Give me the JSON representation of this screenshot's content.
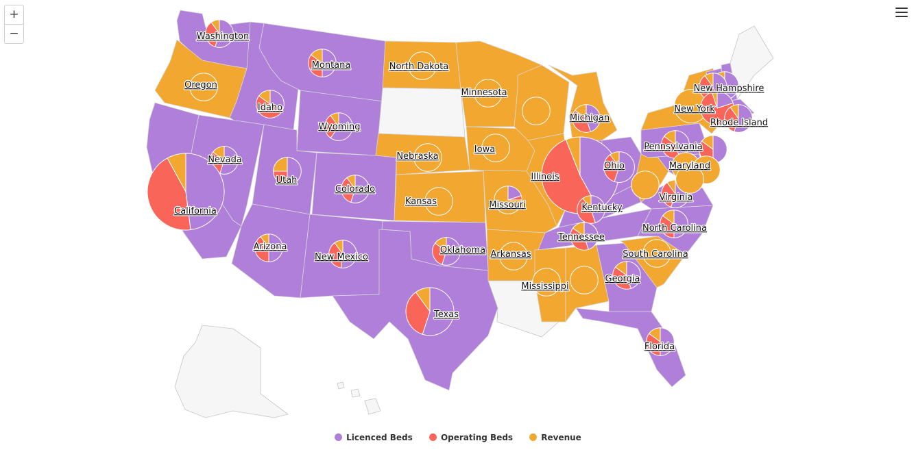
{
  "zoom": {
    "in_label": "+",
    "out_label": "−"
  },
  "menu": {
    "icon": "hamburger-menu-icon"
  },
  "colors": {
    "licenced_beds": "#b07fd9",
    "operating_beds": "#f96659",
    "revenue": "#f2a730",
    "no_data": "#f6f6f6",
    "border": "#d9d9d9"
  },
  "legend": [
    {
      "key": "licenced_beds",
      "label": "Licenced Beds",
      "color": "#b07fd9"
    },
    {
      "key": "operating_beds",
      "label": "Operating Beds",
      "color": "#f96659"
    },
    {
      "key": "revenue",
      "label": "Revenue",
      "color": "#f2a730"
    }
  ],
  "states": [
    {
      "name": "Washington",
      "fill": "licenced_beds"
    },
    {
      "name": "Oregon",
      "fill": "revenue"
    },
    {
      "name": "California",
      "fill": "licenced_beds"
    },
    {
      "name": "Idaho",
      "fill": "licenced_beds"
    },
    {
      "name": "Nevada",
      "fill": "licenced_beds"
    },
    {
      "name": "Montana",
      "fill": "licenced_beds"
    },
    {
      "name": "Wyoming",
      "fill": "licenced_beds"
    },
    {
      "name": "Utah",
      "fill": "licenced_beds"
    },
    {
      "name": "Arizona",
      "fill": "licenced_beds"
    },
    {
      "name": "Colorado",
      "fill": "licenced_beds"
    },
    {
      "name": "New Mexico",
      "fill": "licenced_beds"
    },
    {
      "name": "North Dakota",
      "fill": "revenue"
    },
    {
      "name": "South Dakota",
      "fill": "no_data"
    },
    {
      "name": "Nebraska",
      "fill": "revenue"
    },
    {
      "name": "Kansas",
      "fill": "revenue"
    },
    {
      "name": "Oklahoma",
      "fill": "licenced_beds"
    },
    {
      "name": "Texas",
      "fill": "licenced_beds"
    },
    {
      "name": "Minnesota",
      "fill": "revenue"
    },
    {
      "name": "Iowa",
      "fill": "revenue"
    },
    {
      "name": "Missouri",
      "fill": "revenue"
    },
    {
      "name": "Arkansas",
      "fill": "revenue"
    },
    {
      "name": "Louisiana",
      "fill": "no_data"
    },
    {
      "name": "Wisconsin",
      "fill": "revenue"
    },
    {
      "name": "Illinois",
      "fill": "revenue"
    },
    {
      "name": "Michigan",
      "fill": "revenue"
    },
    {
      "name": "Indiana",
      "fill": "licenced_beds"
    },
    {
      "name": "Ohio",
      "fill": "licenced_beds"
    },
    {
      "name": "Kentucky",
      "fill": "licenced_beds"
    },
    {
      "name": "Tennessee",
      "fill": "licenced_beds"
    },
    {
      "name": "Mississippi",
      "fill": "revenue"
    },
    {
      "name": "Alabama",
      "fill": "revenue"
    },
    {
      "name": "Georgia",
      "fill": "licenced_beds"
    },
    {
      "name": "Florida",
      "fill": "licenced_beds"
    },
    {
      "name": "South Carolina",
      "fill": "revenue"
    },
    {
      "name": "North Carolina",
      "fill": "licenced_beds"
    },
    {
      "name": "Virginia",
      "fill": "licenced_beds"
    },
    {
      "name": "West Virginia",
      "fill": "revenue"
    },
    {
      "name": "Pennsylvania",
      "fill": "licenced_beds"
    },
    {
      "name": "New York",
      "fill": "revenue"
    },
    {
      "name": "Maryland",
      "fill": "licenced_beds"
    },
    {
      "name": "Vermont",
      "fill": "licenced_beds"
    },
    {
      "name": "New Hampshire",
      "fill": "licenced_beds"
    },
    {
      "name": "Maine",
      "fill": "no_data"
    },
    {
      "name": "Massachusetts",
      "fill": "licenced_beds"
    },
    {
      "name": "Rhode Island",
      "fill": "licenced_beds"
    },
    {
      "name": "Alaska",
      "fill": "no_data"
    },
    {
      "name": "Hawaii",
      "fill": "no_data"
    }
  ],
  "labels": [
    {
      "state": "Washington",
      "text": "Washington"
    },
    {
      "state": "Oregon",
      "text": "Oregon"
    },
    {
      "state": "California",
      "text": "California"
    },
    {
      "state": "Idaho",
      "text": "Idaho"
    },
    {
      "state": "Nevada",
      "text": "Nevada"
    },
    {
      "state": "Montana",
      "text": "Montana"
    },
    {
      "state": "Wyoming",
      "text": "Wyoming"
    },
    {
      "state": "Utah",
      "text": "Utah"
    },
    {
      "state": "Arizona",
      "text": "Arizona"
    },
    {
      "state": "Colorado",
      "text": "Colorado"
    },
    {
      "state": "New Mexico",
      "text": "New Mexico"
    },
    {
      "state": "North Dakota",
      "text": "North Dakota"
    },
    {
      "state": "Nebraska",
      "text": "Nebraska"
    },
    {
      "state": "Kansas",
      "text": "Kansas"
    },
    {
      "state": "Oklahoma",
      "text": "Oklahoma"
    },
    {
      "state": "Texas",
      "text": "Texas"
    },
    {
      "state": "Minnesota",
      "text": "Minnesota"
    },
    {
      "state": "Iowa",
      "text": "Iowa"
    },
    {
      "state": "Missouri",
      "text": "Missouri"
    },
    {
      "state": "Arkansas",
      "text": "Arkansas"
    },
    {
      "state": "Illinois",
      "text": "Illinois"
    },
    {
      "state": "Michigan",
      "text": "Michigan"
    },
    {
      "state": "Ohio",
      "text": "Ohio"
    },
    {
      "state": "Kentucky",
      "text": "Kentucky"
    },
    {
      "state": "Tennessee",
      "text": "Tennessee"
    },
    {
      "state": "Mississippi",
      "text": "Mississippi"
    },
    {
      "state": "Georgia",
      "text": "Georgia"
    },
    {
      "state": "Florida",
      "text": "Florida"
    },
    {
      "state": "South Carolina",
      "text": "South Carolina"
    },
    {
      "state": "North Carolina",
      "text": "North Carolina"
    },
    {
      "state": "Virginia",
      "text": "Virginia"
    },
    {
      "state": "Pennsylvania",
      "text": "Pennsylvania"
    },
    {
      "state": "Maryland",
      "text": "Maryland"
    },
    {
      "state": "New York",
      "text": "New York"
    },
    {
      "state": "New Hampshire",
      "text": "New Hampshire"
    },
    {
      "state": "Rhode Island",
      "text": "Rhode Island"
    }
  ],
  "pies": [
    {
      "state": "Washington",
      "size": 0.15,
      "values": [
        0.55,
        0.35,
        0.1
      ]
    },
    {
      "state": "Oregon",
      "size": 0.15,
      "values": [
        0,
        0,
        1
      ]
    },
    {
      "state": "Idaho",
      "size": 0.15,
      "values": [
        0.3,
        0.55,
        0.15
      ]
    },
    {
      "state": "Montana",
      "size": 0.15,
      "values": [
        0.5,
        0.35,
        0.15
      ]
    },
    {
      "state": "Wyoming",
      "size": 0.15,
      "values": [
        0.6,
        0.3,
        0.1
      ]
    },
    {
      "state": "Nevada",
      "size": 0.15,
      "values": [
        0.55,
        0.3,
        0.15
      ]
    },
    {
      "state": "Utah",
      "size": 0.15,
      "values": [
        0.5,
        0.25,
        0.25
      ]
    },
    {
      "state": "Colorado",
      "size": 0.15,
      "values": [
        0.55,
        0.35,
        0.1
      ]
    },
    {
      "state": "California",
      "size": 1.0,
      "values": [
        0.48,
        0.44,
        0.08
      ]
    },
    {
      "state": "Arizona",
      "size": 0.15,
      "values": [
        0.5,
        0.4,
        0.1
      ]
    },
    {
      "state": "New Mexico",
      "size": 0.15,
      "values": [
        0.52,
        0.38,
        0.1
      ]
    },
    {
      "state": "North Dakota",
      "size": 0.15,
      "values": [
        0,
        0,
        1
      ]
    },
    {
      "state": "Nebraska",
      "size": 0.15,
      "values": [
        0,
        0,
        1
      ]
    },
    {
      "state": "Kansas",
      "size": 0.15,
      "values": [
        0,
        0,
        1
      ]
    },
    {
      "state": "Oklahoma",
      "size": 0.15,
      "values": [
        0.55,
        0.3,
        0.15
      ]
    },
    {
      "state": "Texas",
      "size": 0.5,
      "values": [
        0.55,
        0.35,
        0.1
      ]
    },
    {
      "state": "Minnesota",
      "size": 0.15,
      "values": [
        0,
        0,
        1
      ]
    },
    {
      "state": "Iowa",
      "size": 0.15,
      "values": [
        0,
        0,
        1
      ]
    },
    {
      "state": "Wisconsin",
      "size": 0.15,
      "values": [
        0,
        0,
        1
      ]
    },
    {
      "state": "Missouri",
      "size": 0.15,
      "values": [
        0.2,
        0.05,
        0.75
      ]
    },
    {
      "state": "Arkansas",
      "size": 0.15,
      "values": [
        0,
        0,
        1
      ]
    },
    {
      "state": "Illinois",
      "size": 1.0,
      "values": [
        0.42,
        0.52,
        0.06
      ]
    },
    {
      "state": "Michigan",
      "size": 0.15,
      "values": [
        0.45,
        0.4,
        0.15
      ]
    },
    {
      "state": "Ohio",
      "size": 0.2,
      "values": [
        0.55,
        0.35,
        0.1
      ]
    },
    {
      "state": "Kentucky",
      "size": 0.15,
      "values": [
        0.45,
        0.45,
        0.1
      ]
    },
    {
      "state": "Tennessee",
      "size": 0.15,
      "values": [
        0.45,
        0.4,
        0.15
      ]
    },
    {
      "state": "Mississippi",
      "size": 0.15,
      "values": [
        0,
        0,
        1
      ]
    },
    {
      "state": "Alabama",
      "size": 0.15,
      "values": [
        0,
        0,
        1
      ]
    },
    {
      "state": "Georgia",
      "size": 0.15,
      "values": [
        0.45,
        0.4,
        0.15
      ]
    },
    {
      "state": "Florida",
      "size": 0.15,
      "values": [
        0.5,
        0.35,
        0.15
      ]
    },
    {
      "state": "South Carolina",
      "size": 0.15,
      "values": [
        0,
        0,
        1
      ]
    },
    {
      "state": "North Carolina",
      "size": 0.15,
      "values": [
        0.5,
        0.35,
        0.15
      ]
    },
    {
      "state": "Virginia",
      "size": 0.15,
      "values": [
        0.55,
        0.35,
        0.1
      ]
    },
    {
      "state": "West Virginia",
      "size": 0.15,
      "values": [
        0,
        0,
        1
      ]
    },
    {
      "state": "Pennsylvania",
      "size": 0.15,
      "values": [
        0.45,
        0.4,
        0.15
      ]
    },
    {
      "state": "New Jersey",
      "size": 0.15,
      "values": [
        0.5,
        0.35,
        0.15
      ]
    },
    {
      "state": "Maryland",
      "size": 0.15,
      "values": [
        0,
        0,
        1
      ]
    },
    {
      "state": "Delaware",
      "size": 0.15,
      "values": [
        0,
        0,
        1
      ]
    },
    {
      "state": "DC",
      "size": 0.15,
      "values": [
        0,
        0,
        1
      ]
    },
    {
      "state": "New York",
      "size": 0.25,
      "values": [
        0,
        0,
        1
      ]
    },
    {
      "state": "New Hampshire",
      "size": 0.15,
      "values": [
        0.5,
        0.4,
        0.1
      ]
    },
    {
      "state": "Vermont",
      "size": 0.15,
      "values": [
        0.45,
        0.45,
        0.1
      ]
    },
    {
      "state": "Massachusetts",
      "size": 0.25,
      "values": [
        0.2,
        0.75,
        0.05
      ]
    },
    {
      "state": "Rhode Island",
      "size": 0.15,
      "values": [
        0.55,
        0.35,
        0.1
      ]
    }
  ]
}
